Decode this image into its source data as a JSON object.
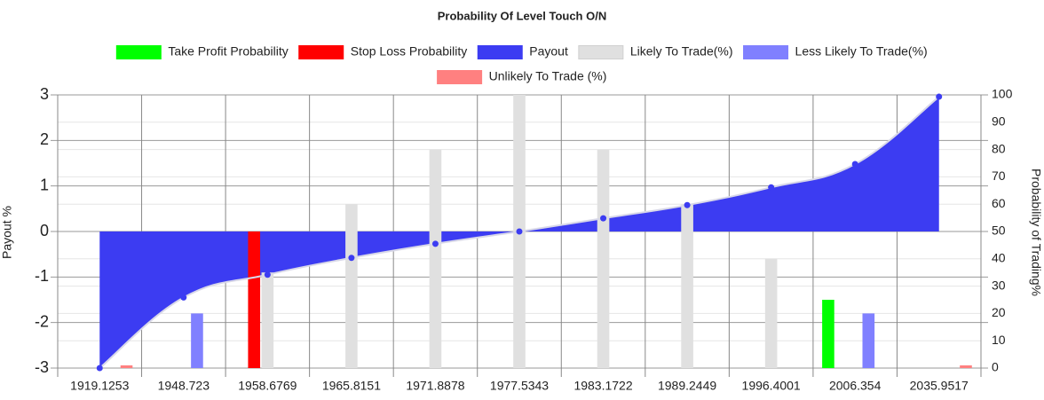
{
  "chart_data": {
    "type": "bar",
    "title": "Probability Of Level Touch  O/N",
    "y_label": "Payout %",
    "y2_label": "Probability of Trading%",
    "categories": [
      "1919.1253",
      "1948.723",
      "1958.6769",
      "1965.8151",
      "1971.8878",
      "1977.5343",
      "1983.1722",
      "1989.2449",
      "1996.4001",
      "2006.354",
      "2035.9517"
    ],
    "ylim": [
      -3,
      3
    ],
    "yticks": [
      -3,
      -2,
      -1,
      0,
      1,
      2,
      3
    ],
    "y2lim": [
      0,
      100
    ],
    "y2ticks": [
      0,
      10,
      20,
      30,
      40,
      50,
      60,
      70,
      80,
      90,
      100
    ],
    "grid": true,
    "series": [
      {
        "name": "Take Profit Probability",
        "type": "bar",
        "axis": "y2",
        "color": "#00ff00",
        "values": [
          null,
          null,
          null,
          null,
          null,
          null,
          null,
          null,
          null,
          25,
          null
        ]
      },
      {
        "name": "Stop Loss Probability",
        "type": "bar",
        "axis": "y2",
        "color": "#ff0000",
        "values": [
          null,
          null,
          50,
          null,
          null,
          null,
          null,
          null,
          null,
          null,
          null
        ]
      },
      {
        "name": "Payout",
        "type": "line",
        "color": "#3c3cf2",
        "values": [
          -3,
          -1.45,
          -0.95,
          -0.58,
          -0.27,
          0,
          0.29,
          0.58,
          0.97,
          1.48,
          2.96
        ]
      },
      {
        "name": "Likely To Trade(%)",
        "type": "bar",
        "axis": "y2",
        "color": "#e0e0e0",
        "values": [
          null,
          null,
          35,
          60,
          80,
          100,
          80,
          60,
          40,
          null,
          null
        ]
      },
      {
        "name": "Less Likely To Trade(%)",
        "type": "bar",
        "axis": "y2",
        "color": "#8080ff",
        "values": [
          null,
          20,
          null,
          null,
          null,
          null,
          null,
          null,
          null,
          20,
          null
        ]
      },
      {
        "name": "Unlikely To Trade (%)",
        "type": "bar",
        "axis": "y2",
        "color": "#ff8080",
        "values": [
          1,
          null,
          null,
          null,
          null,
          null,
          null,
          null,
          null,
          null,
          1
        ]
      }
    ]
  }
}
